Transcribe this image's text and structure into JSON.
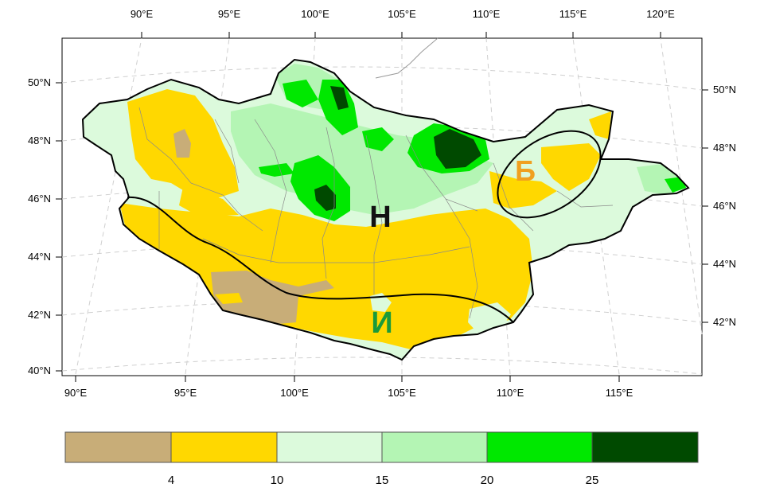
{
  "map": {
    "top_lon_labels": [
      "90°E",
      "95°E",
      "100°E",
      "105°E",
      "110°E",
      "115°E",
      "120°E"
    ],
    "bottom_lon_labels": [
      "90°E",
      "95°E",
      "100°E",
      "105°E",
      "110°E",
      "115°E"
    ],
    "left_lat_labels": [
      "50°N",
      "48°N",
      "46°N",
      "44°N",
      "42°N",
      "40°N"
    ],
    "right_lat_labels": [
      "50°N",
      "48°N",
      "46°N",
      "44°N",
      "42°N"
    ],
    "region_labels": {
      "north": {
        "text": "Н",
        "color": "#111111"
      },
      "east": {
        "text": "Б",
        "color": "#f0a020"
      },
      "south": {
        "text": "И",
        "color": "#1a9a3a"
      }
    }
  },
  "legend": {
    "colors": [
      "#c8ad78",
      "#ffd800",
      "#dcfadc",
      "#b4f5b4",
      "#00e800",
      "#004a00"
    ],
    "ticks": [
      "4",
      "10",
      "15",
      "20",
      "25"
    ]
  }
}
